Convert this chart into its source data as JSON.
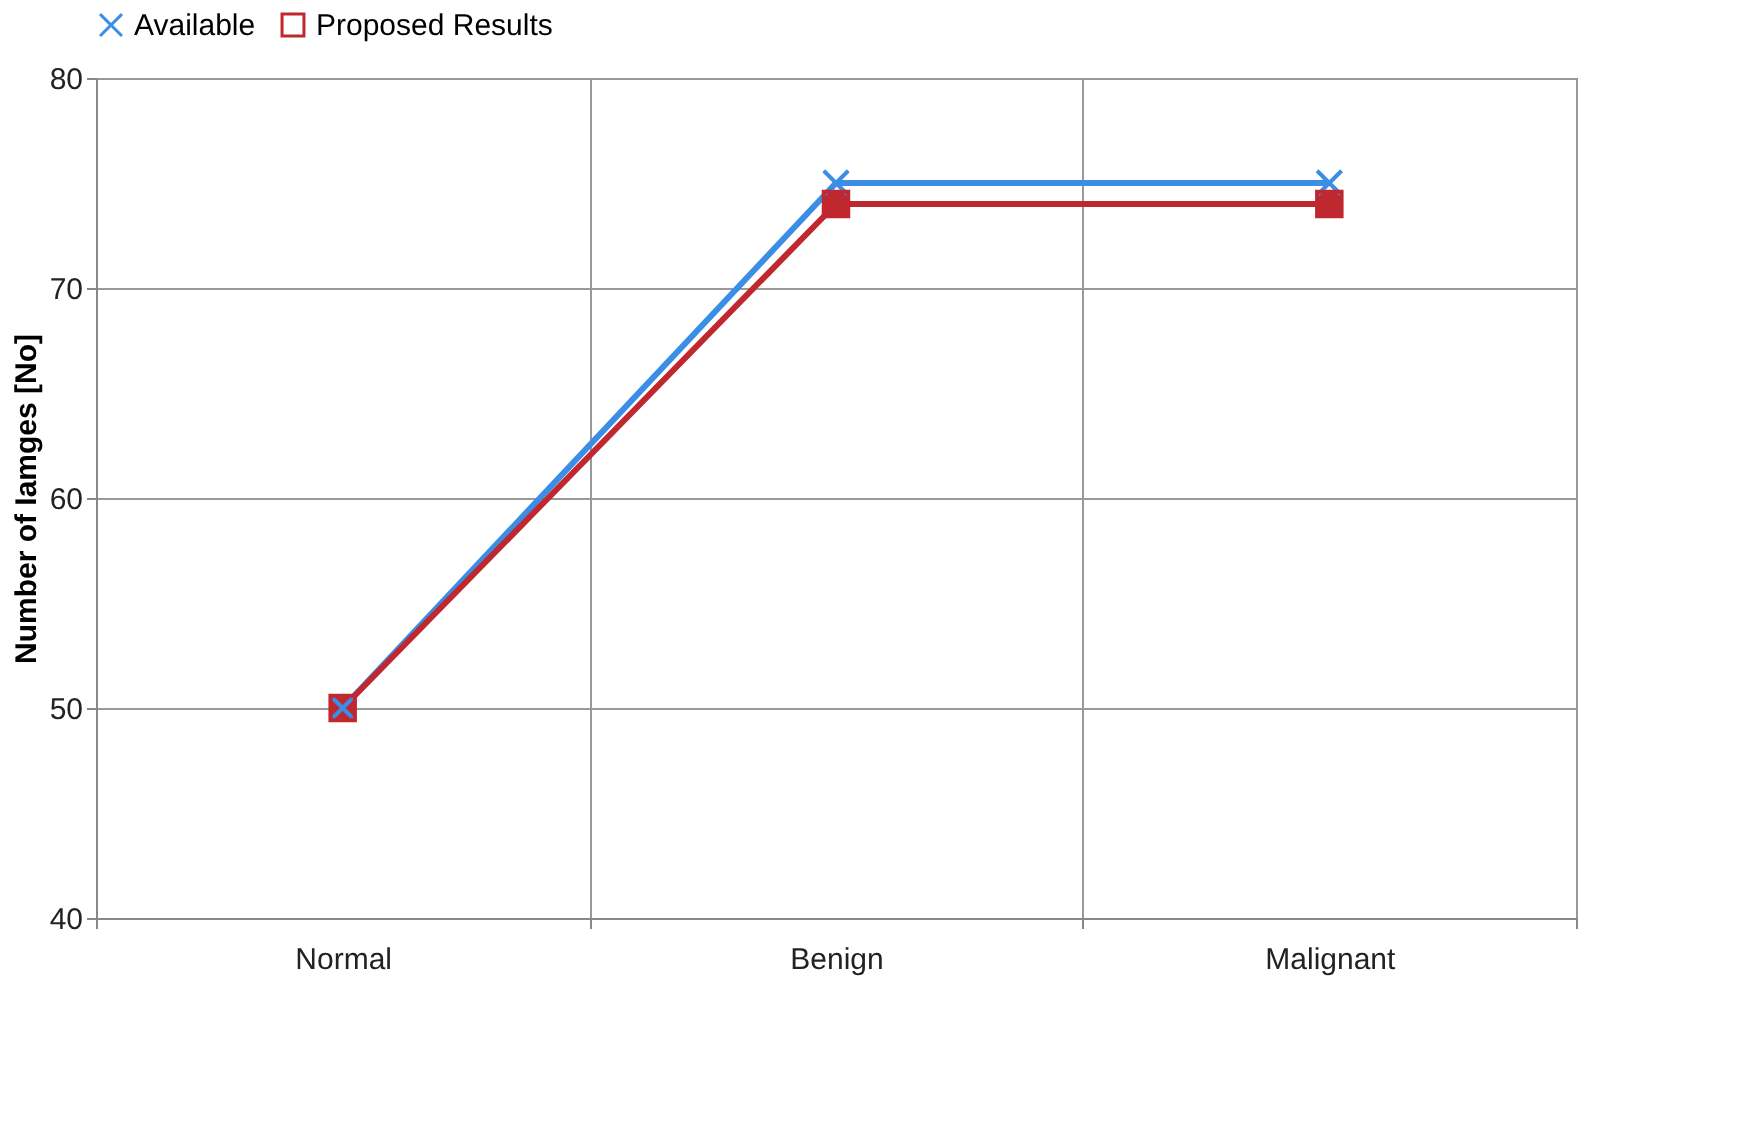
{
  "chart_data": {
    "type": "line",
    "ylabel": "Number of Iamges [No]",
    "categories": [
      "Normal",
      "Benign",
      "Malignant"
    ],
    "series": [
      {
        "name": "Available",
        "color": "#3a8ee6",
        "marker": "cross",
        "values": [
          50,
          75,
          75
        ]
      },
      {
        "name": "Proposed Results",
        "color": "#c0282f",
        "marker": "square",
        "values": [
          50,
          74,
          74
        ]
      }
    ],
    "ylim": [
      40,
      80
    ],
    "yticks": [
      40,
      50,
      60,
      70,
      80
    ],
    "grid": true,
    "legend": "top"
  }
}
